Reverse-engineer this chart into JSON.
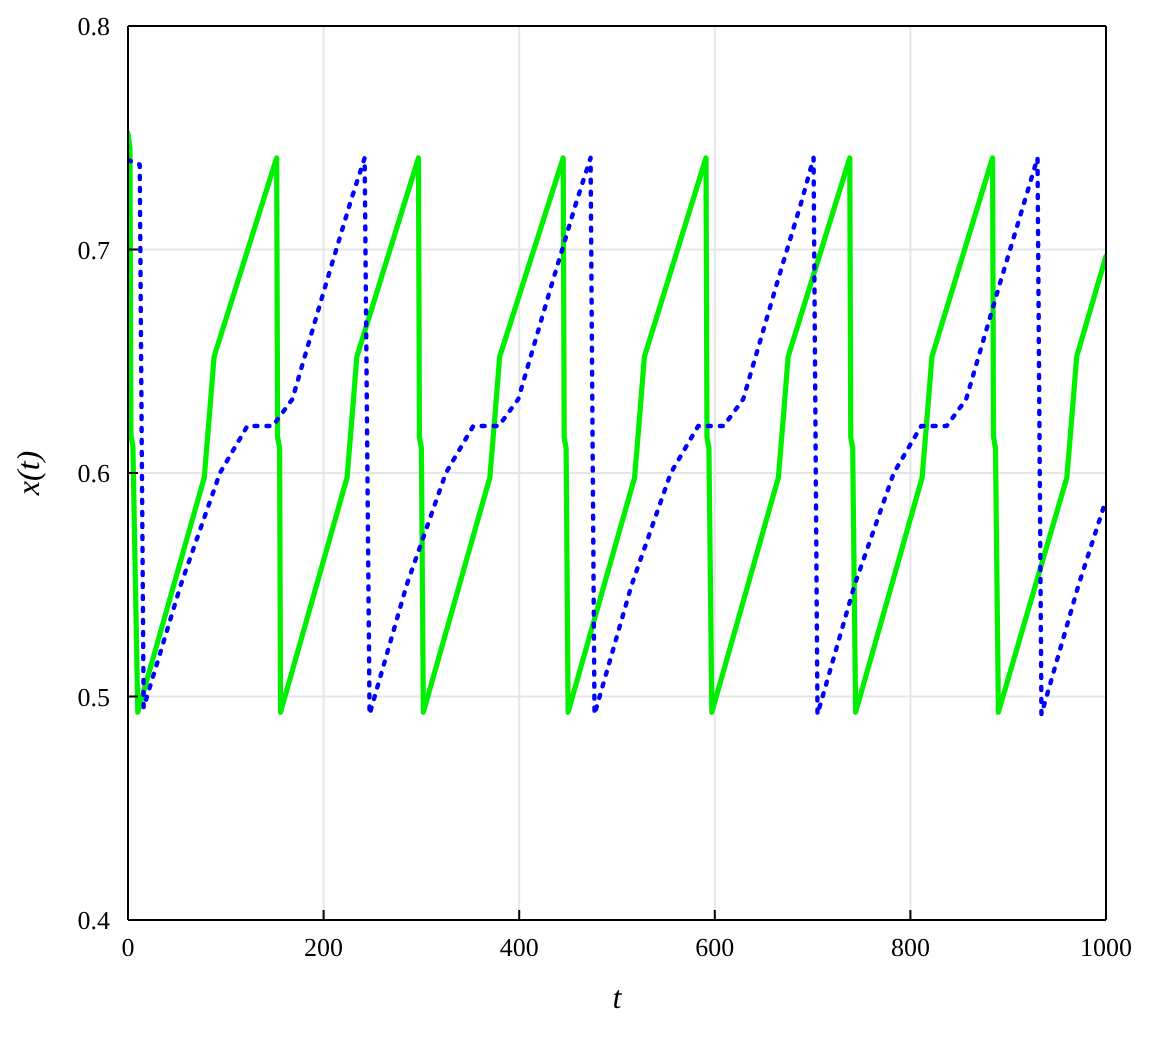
{
  "chart_data": {
    "type": "line",
    "xlabel": "t",
    "ylabel": "x(t)",
    "xlim": [
      0,
      1000
    ],
    "ylim": [
      0.4,
      0.8
    ],
    "xticks": [
      0,
      200,
      400,
      600,
      800,
      1000
    ],
    "yticks": [
      0.4,
      0.5,
      0.6,
      0.7,
      0.8
    ],
    "grid": true,
    "marker": "none",
    "series": [
      {
        "color": "#00ee00",
        "line_style": "solid",
        "x": [
          0,
          2,
          3,
          5,
          10,
          78,
          84,
          88,
          152,
          153,
          155,
          156,
          224,
          230,
          234,
          297,
          298,
          300,
          302,
          370,
          376,
          380,
          445,
          446,
          448,
          450,
          518,
          524,
          528,
          591,
          592,
          594,
          597,
          665,
          671,
          675,
          738,
          739,
          741,
          744,
          812,
          818,
          822,
          884,
          885,
          887,
          890,
          960,
          966,
          970,
          1000
        ],
        "values": [
          0.752,
          0.745,
          0.617,
          0.612,
          0.493,
          0.598,
          0.63,
          0.652,
          0.741,
          0.616,
          0.611,
          0.493,
          0.598,
          0.63,
          0.652,
          0.741,
          0.616,
          0.611,
          0.493,
          0.598,
          0.63,
          0.652,
          0.741,
          0.616,
          0.611,
          0.493,
          0.598,
          0.63,
          0.652,
          0.741,
          0.616,
          0.611,
          0.493,
          0.598,
          0.63,
          0.652,
          0.741,
          0.616,
          0.611,
          0.493,
          0.598,
          0.63,
          0.652,
          0.741,
          0.616,
          0.611,
          0.493,
          0.598,
          0.63,
          0.652,
          0.697
        ]
      },
      {
        "color": "#0000ff",
        "line_style": "dotted",
        "x": [
          0,
          12,
          16,
          54,
          94,
          122,
          148,
          168,
          202,
          228,
          242,
          247,
          285,
          325,
          353,
          379,
          399,
          433,
          459,
          473,
          477,
          515,
          555,
          583,
          609,
          629,
          663,
          689,
          701,
          705,
          743,
          783,
          811,
          837,
          857,
          891,
          917,
          930,
          934,
          972,
          1000
        ],
        "values": [
          0.74,
          0.738,
          0.495,
          0.55,
          0.6,
          0.621,
          0.621,
          0.633,
          0.684,
          0.722,
          0.741,
          0.492,
          0.55,
          0.6,
          0.621,
          0.621,
          0.633,
          0.684,
          0.722,
          0.741,
          0.492,
          0.55,
          0.6,
          0.621,
          0.621,
          0.633,
          0.684,
          0.722,
          0.741,
          0.492,
          0.55,
          0.6,
          0.621,
          0.621,
          0.633,
          0.684,
          0.722,
          0.741,
          0.492,
          0.55,
          0.588
        ]
      }
    ]
  }
}
